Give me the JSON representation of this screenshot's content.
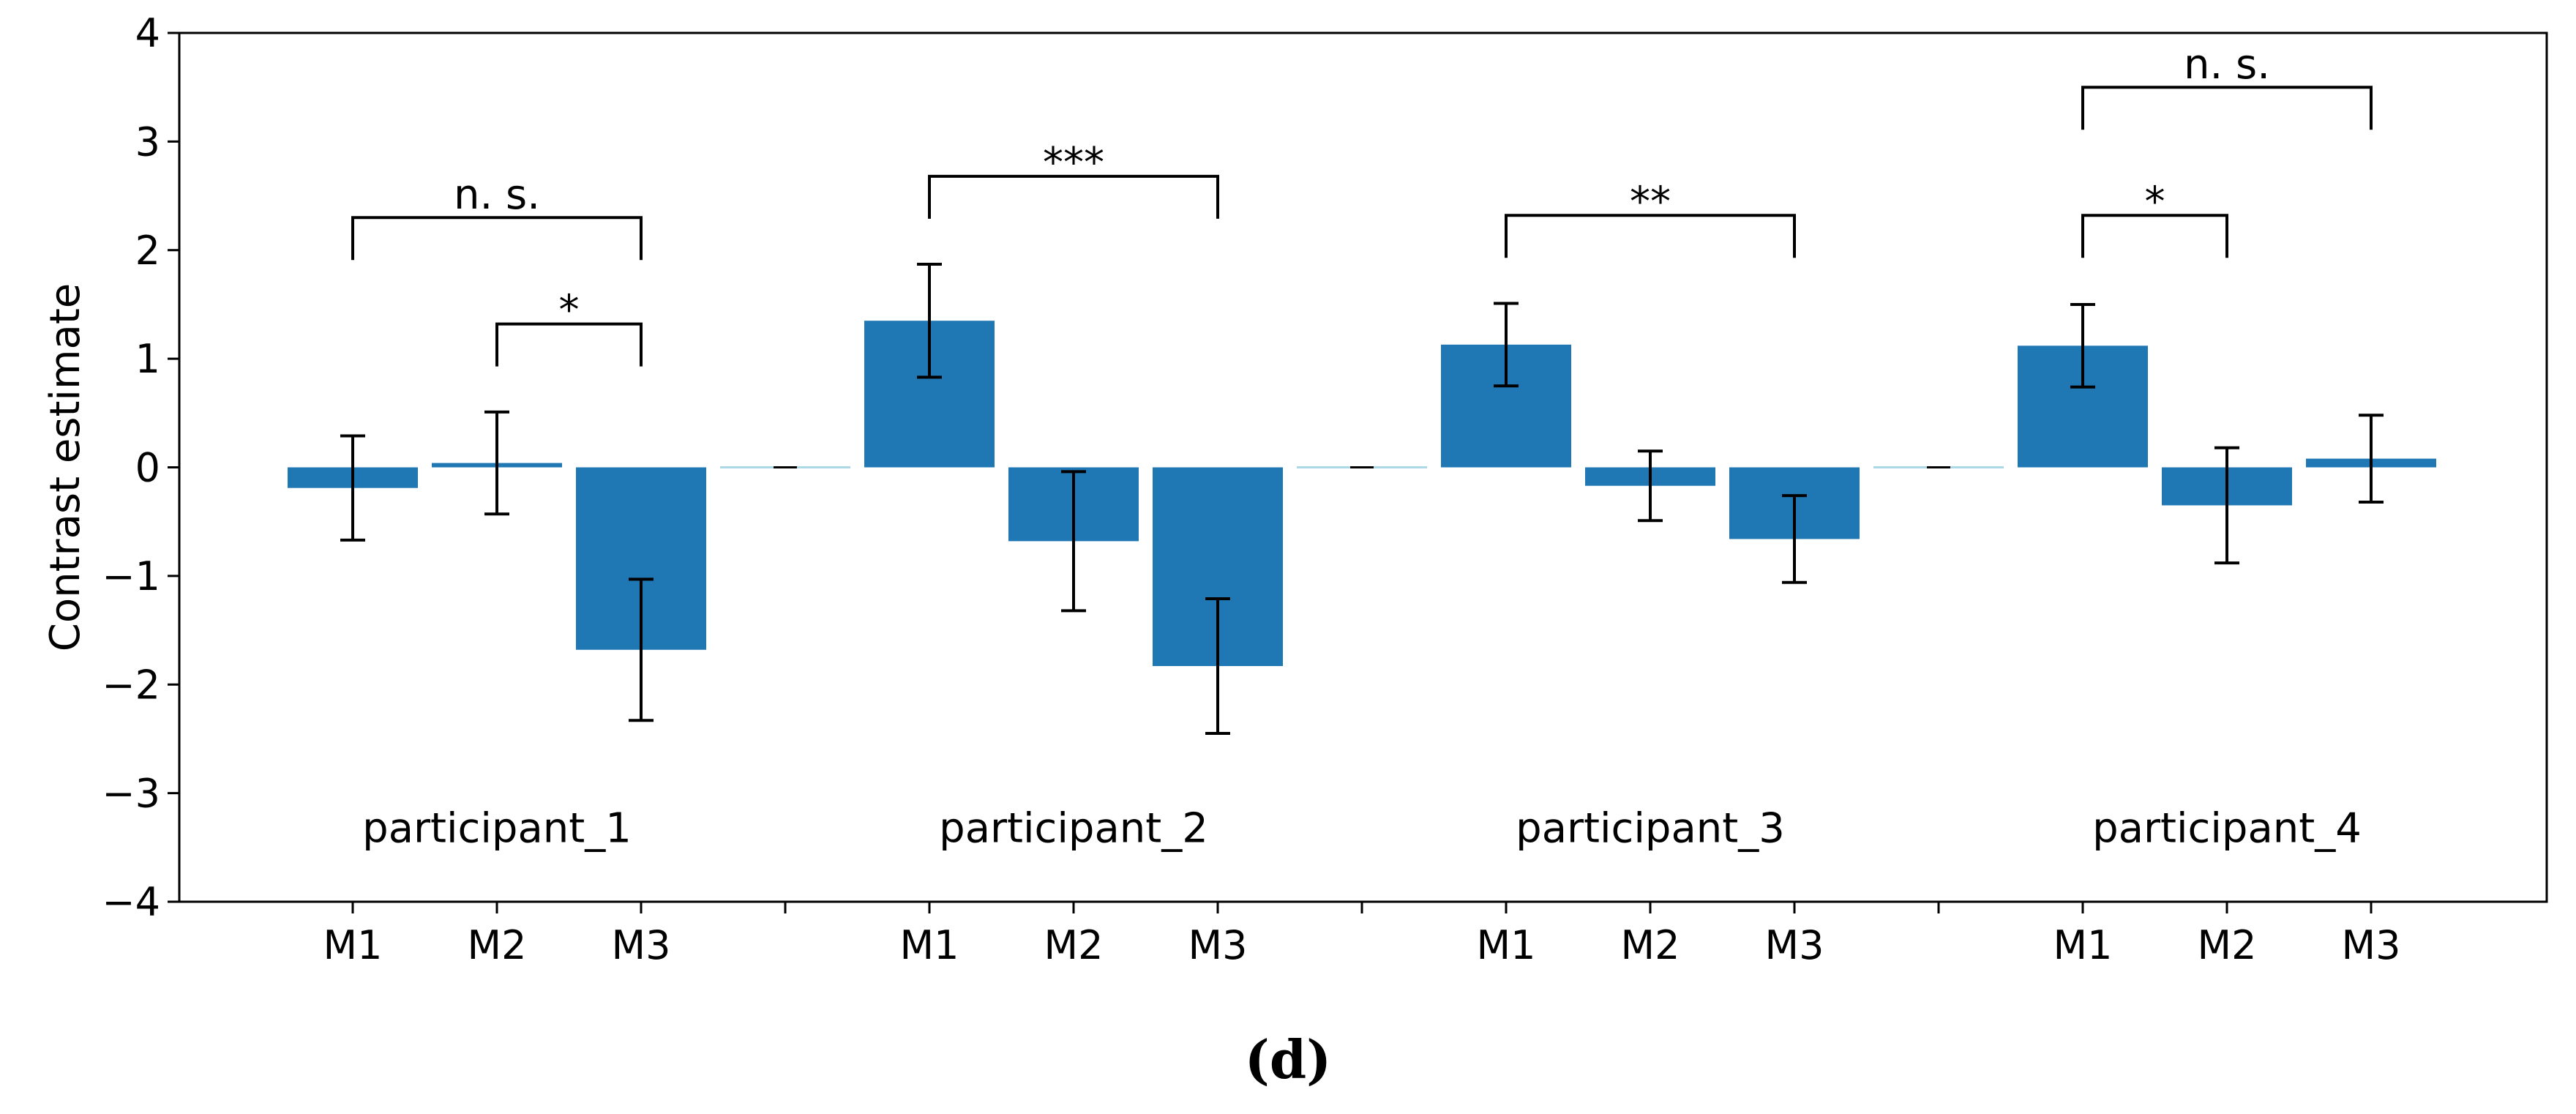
{
  "chart_data": {
    "type": "bar",
    "ylabel": "Contrast estimate",
    "ylim": [
      -4,
      4
    ],
    "yticks": [
      4,
      3,
      2,
      1,
      0,
      -1,
      -2,
      -3,
      -4
    ],
    "ytick_labels": [
      "4",
      "3",
      "2",
      "1",
      "0",
      "−1",
      "−2",
      "−3",
      "−4"
    ],
    "bar_color": "#1f77b4",
    "separator_color": "#add8e6",
    "groups": [
      {
        "label": "participant_1",
        "categories": [
          "M1",
          "M2",
          "M3"
        ],
        "values": [
          -0.19,
          0.04,
          -1.68
        ],
        "err": [
          0.48,
          0.47,
          0.65
        ],
        "brackets": [
          {
            "from": 0,
            "to": 2,
            "level": 2.3,
            "label": "n. s."
          },
          {
            "from": 1,
            "to": 2,
            "level": 1.32,
            "label": "*"
          }
        ]
      },
      {
        "label": "participant_2",
        "categories": [
          "M1",
          "M2",
          "M3"
        ],
        "values": [
          1.35,
          -0.68,
          -1.83
        ],
        "err": [
          0.52,
          0.64,
          0.62
        ],
        "brackets": [
          {
            "from": 0,
            "to": 2,
            "level": 2.68,
            "label": "***"
          }
        ]
      },
      {
        "label": "participant_3",
        "categories": [
          "M1",
          "M2",
          "M3"
        ],
        "values": [
          1.13,
          -0.17,
          -0.66
        ],
        "err": [
          0.38,
          0.32,
          0.4
        ],
        "brackets": [
          {
            "from": 0,
            "to": 2,
            "level": 2.32,
            "label": "**"
          }
        ]
      },
      {
        "label": "participant_4",
        "categories": [
          "M1",
          "M2",
          "M3"
        ],
        "values": [
          1.12,
          -0.35,
          0.08
        ],
        "err": [
          0.38,
          0.53,
          0.4
        ],
        "brackets": [
          {
            "from": 0,
            "to": 2,
            "level": 3.5,
            "label": "n. s."
          },
          {
            "from": 0,
            "to": 1,
            "level": 2.32,
            "label": "*"
          }
        ]
      }
    ]
  },
  "caption": "(d)"
}
